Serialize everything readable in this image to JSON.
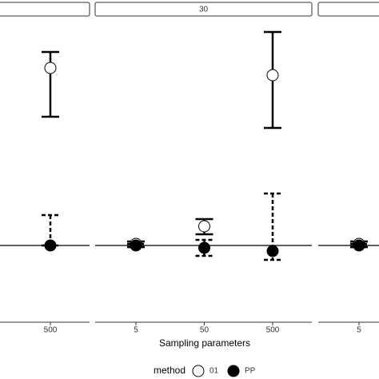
{
  "chart_data": {
    "type": "errorbar",
    "x_label": "Sampling parameters",
    "ylim": [
      -0.93,
      2.82
    ],
    "hline": 0,
    "legend": {
      "title": "method",
      "position": "bottom"
    },
    "series": [
      {
        "name": "01",
        "color": "#ffffff",
        "linetype": "solid"
      },
      {
        "name": "PP",
        "color": "#000000",
        "linetype": "dashed"
      }
    ],
    "facets": [
      {
        "label": null,
        "categories": [
          "500"
        ],
        "series": [
          {
            "values": [
              2.22
            ],
            "lower": [
              1.61
            ],
            "upper": [
              2.42
            ]
          },
          {
            "values": [
              0
            ],
            "lower": [
              0
            ],
            "upper": [
              0.38
            ]
          }
        ]
      },
      {
        "label": "30",
        "categories": [
          "5",
          "50",
          "500"
        ],
        "series": [
          {
            "values": [
              0.02,
              0.24,
              2.13
            ],
            "lower": [
              -0.02,
              0.14,
              1.47
            ],
            "upper": [
              0.05,
              0.33,
              2.67
            ]
          },
          {
            "values": [
              0,
              -0.03,
              -0.07
            ],
            "lower": [
              -0.02,
              -0.13,
              -0.18
            ],
            "upper": [
              0.02,
              0.07,
              0.65
            ]
          }
        ]
      },
      {
        "label": null,
        "categories": [
          "5"
        ],
        "series": [
          {
            "values": [
              0.02
            ],
            "lower": [
              -0.02
            ],
            "upper": [
              0.05
            ]
          },
          {
            "values": [
              0
            ],
            "lower": [
              -0.02
            ],
            "upper": [
              0.02
            ]
          }
        ]
      }
    ]
  }
}
